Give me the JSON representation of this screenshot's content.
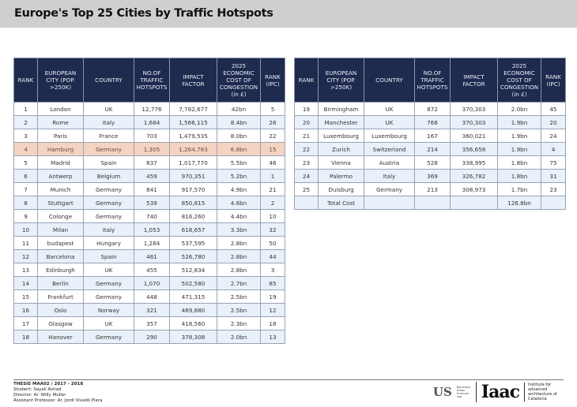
{
  "title": "Europe's Top 25 Cities by Traffic Hotspots",
  "headers": [
    "RANK",
    "EUROPEAN CITY (POP. >250K)",
    "COUNTRY",
    "NO.OF TRAFFIC HOTSPOTS",
    "IMPACT FACTOR",
    "2025 ECONOMIC COST OF CONGESTION (in £)",
    "RANK (IPC)"
  ],
  "highlight_color": "#f4d3c2",
  "header_color": "#1e2a4e",
  "left_rows": [
    [
      "1",
      "London",
      "UK",
      "12,776",
      "7,782,677",
      "42bn",
      "5"
    ],
    [
      "2",
      "Rome",
      "Italy",
      "1,684",
      "1,566,115",
      "8.4bn",
      "26"
    ],
    [
      "3",
      "Paris",
      "France",
      "703",
      "1,479,535",
      "8.0bn",
      "22"
    ],
    [
      "4",
      "Hamburg",
      "Germany",
      "1,305",
      "1,264,783",
      "6.8bn",
      "15"
    ],
    [
      "5",
      "Madrid",
      "Spain",
      "837",
      "1,017,770",
      "5.5bn",
      "46"
    ],
    [
      "6",
      "Antwerp",
      "Belgium",
      "459",
      "970,351",
      "5.2bn",
      "1"
    ],
    [
      "7",
      "Munich",
      "Germany",
      "841",
      "917,570",
      "4.9bn",
      "21"
    ],
    [
      "8",
      "Stuttgart",
      "Germany",
      "539",
      "850,815",
      "4.6bn",
      "2"
    ],
    [
      "9",
      "Colonge",
      "Germany",
      "740",
      "816,260",
      "4.4bn",
      "10"
    ],
    [
      "10",
      "Milan",
      "Italy",
      "1,053",
      "618,657",
      "3.3bn",
      "32"
    ],
    [
      "11",
      "budapest",
      "Hungary",
      "1,284",
      "537,595",
      "2.8bn",
      "50"
    ],
    [
      "12",
      "Barcelona",
      "Spain",
      "461",
      "526,780",
      "2.8bn",
      "44"
    ],
    [
      "13",
      "Edinburgh",
      "UK",
      "455",
      "512,834",
      "2.8bn",
      "3"
    ],
    [
      "14",
      "Berlin",
      "Germany",
      "1,070",
      "502,580",
      "2.7bn",
      "85"
    ],
    [
      "15",
      "Frankfurt",
      "Germany",
      "448",
      "471,315",
      "2.5bn",
      "19"
    ],
    [
      "16",
      "Oslo",
      "Norway",
      "321",
      "469,880",
      "2.5bn",
      "12"
    ],
    [
      "17",
      "Glasgow",
      "UK",
      "357",
      "418,560",
      "2.3bn",
      "18"
    ],
    [
      "18",
      "Hanover",
      "Germany",
      "290",
      "378,308",
      "2.0bn",
      "13"
    ]
  ],
  "right_rows": [
    [
      "19",
      "Birmingham",
      "UK",
      "872",
      "370,303",
      "2.0bn",
      "45"
    ],
    [
      "20",
      "Manchester",
      "UK",
      "768",
      "370,303",
      "1.9bn",
      "20"
    ],
    [
      "21",
      "Luxembourg",
      "Luxembourg",
      "167",
      "360,021",
      "1.9bn",
      "24"
    ],
    [
      "22",
      "Zurich",
      "Switzerland",
      "214",
      "356,658",
      "1.9bn",
      "4"
    ],
    [
      "23",
      "Vienna",
      "Austria",
      "528",
      "338,995",
      "1.8bn",
      "75"
    ],
    [
      "24",
      "Palermo",
      "Italy",
      "369",
      "326,782",
      "1.8bn",
      "31"
    ],
    [
      "25",
      "Duisburg",
      "Germany",
      "213",
      "308,973",
      "1.7bn",
      "23"
    ],
    [
      "",
      "Total Cost",
      "",
      "",
      "",
      "126.8bn",
      ""
    ]
  ],
  "footer": {
    "thesis": "THESIS MAA02 / 2017 - 2018",
    "student": "Student: Sayali Avhad",
    "director": "Director: Ar. Willy Muller",
    "assistant": "Assistant Professor: Ar. Jordi Vivaldi Piera"
  },
  "logos": {
    "usl": "US",
    "usl_text": "Barcelona Urban Sciences Lab",
    "iaac": "Iaac",
    "iaac_text": "Institute for advanced architecture of Catalonia"
  }
}
